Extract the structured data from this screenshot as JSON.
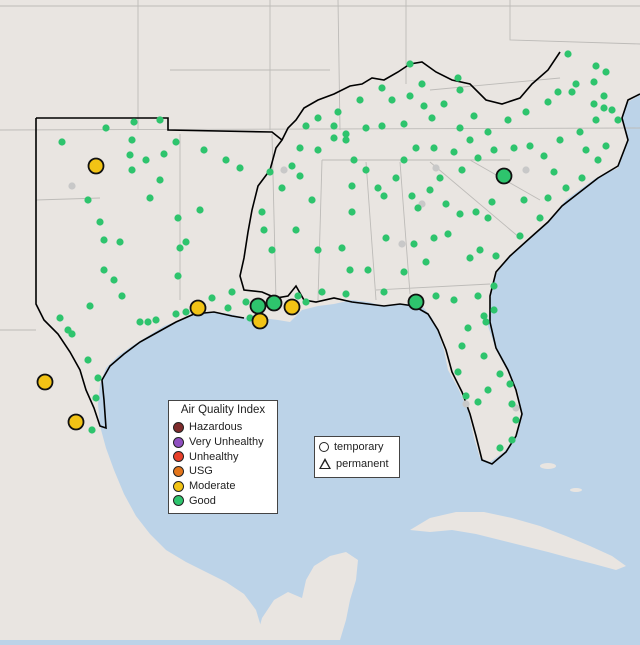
{
  "legend": {
    "title": "Air Quality Index",
    "categories": [
      {
        "label": "Hazardous",
        "color": "#7e2b2b"
      },
      {
        "label": "Very Unhealthy",
        "color": "#8f4fc0"
      },
      {
        "label": "Unhealthy",
        "color": "#e8402a"
      },
      {
        "label": "USG",
        "color": "#e3751b"
      },
      {
        "label": "Moderate",
        "color": "#f2c315"
      },
      {
        "label": "Good",
        "color": "#2ec46d"
      }
    ]
  },
  "type_legend": {
    "items": [
      {
        "label": "temporary",
        "shape": "circle"
      },
      {
        "label": "permanent",
        "shape": "triangle"
      }
    ]
  },
  "map": {
    "land_color": "#e9e5e1",
    "water_color": "#bcd3e8",
    "no_data_color": "#c8c8c8"
  }
}
